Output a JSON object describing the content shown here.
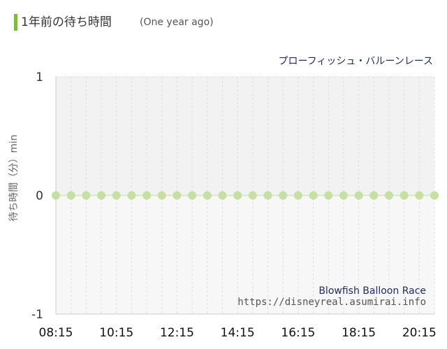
{
  "header": {
    "title": "1年前の待ち時間",
    "subtitle": "(One year ago)"
  },
  "watermark": {
    "ride_name_en": "Blowfish Balloon Race",
    "site_url": "https://disneyreal.asumirai.info"
  },
  "colors": {
    "accent": "#7cc22e",
    "point": "#c5e0a0",
    "line": "#d8ebc2"
  },
  "chart_data": {
    "type": "line",
    "title": "プローフィッシュ・バルーンレース",
    "xlabel": "",
    "ylabel": "待ち時間（分）min",
    "ylim": [
      -1,
      1
    ],
    "yticks": [
      "1",
      "0",
      "-1"
    ],
    "xticks": [
      "08:15",
      "10:15",
      "12:15",
      "14:15",
      "16:15",
      "18:15",
      "20:15"
    ],
    "grid": true,
    "series": [
      {
        "x": [
          "08:15",
          "08:45",
          "09:15",
          "09:45",
          "10:15",
          "10:45",
          "11:15",
          "11:45",
          "12:15",
          "12:45",
          "13:15",
          "13:45",
          "14:15",
          "14:45",
          "15:15",
          "15:45",
          "16:15",
          "16:45",
          "17:15",
          "17:45",
          "18:15",
          "18:45",
          "19:15",
          "19:45",
          "20:15",
          "20:45"
        ],
        "values": [
          0,
          0,
          0,
          0,
          0,
          0,
          0,
          0,
          0,
          0,
          0,
          0,
          0,
          0,
          0,
          0,
          0,
          0,
          0,
          0,
          0,
          0,
          0,
          0,
          0,
          0
        ]
      }
    ]
  }
}
